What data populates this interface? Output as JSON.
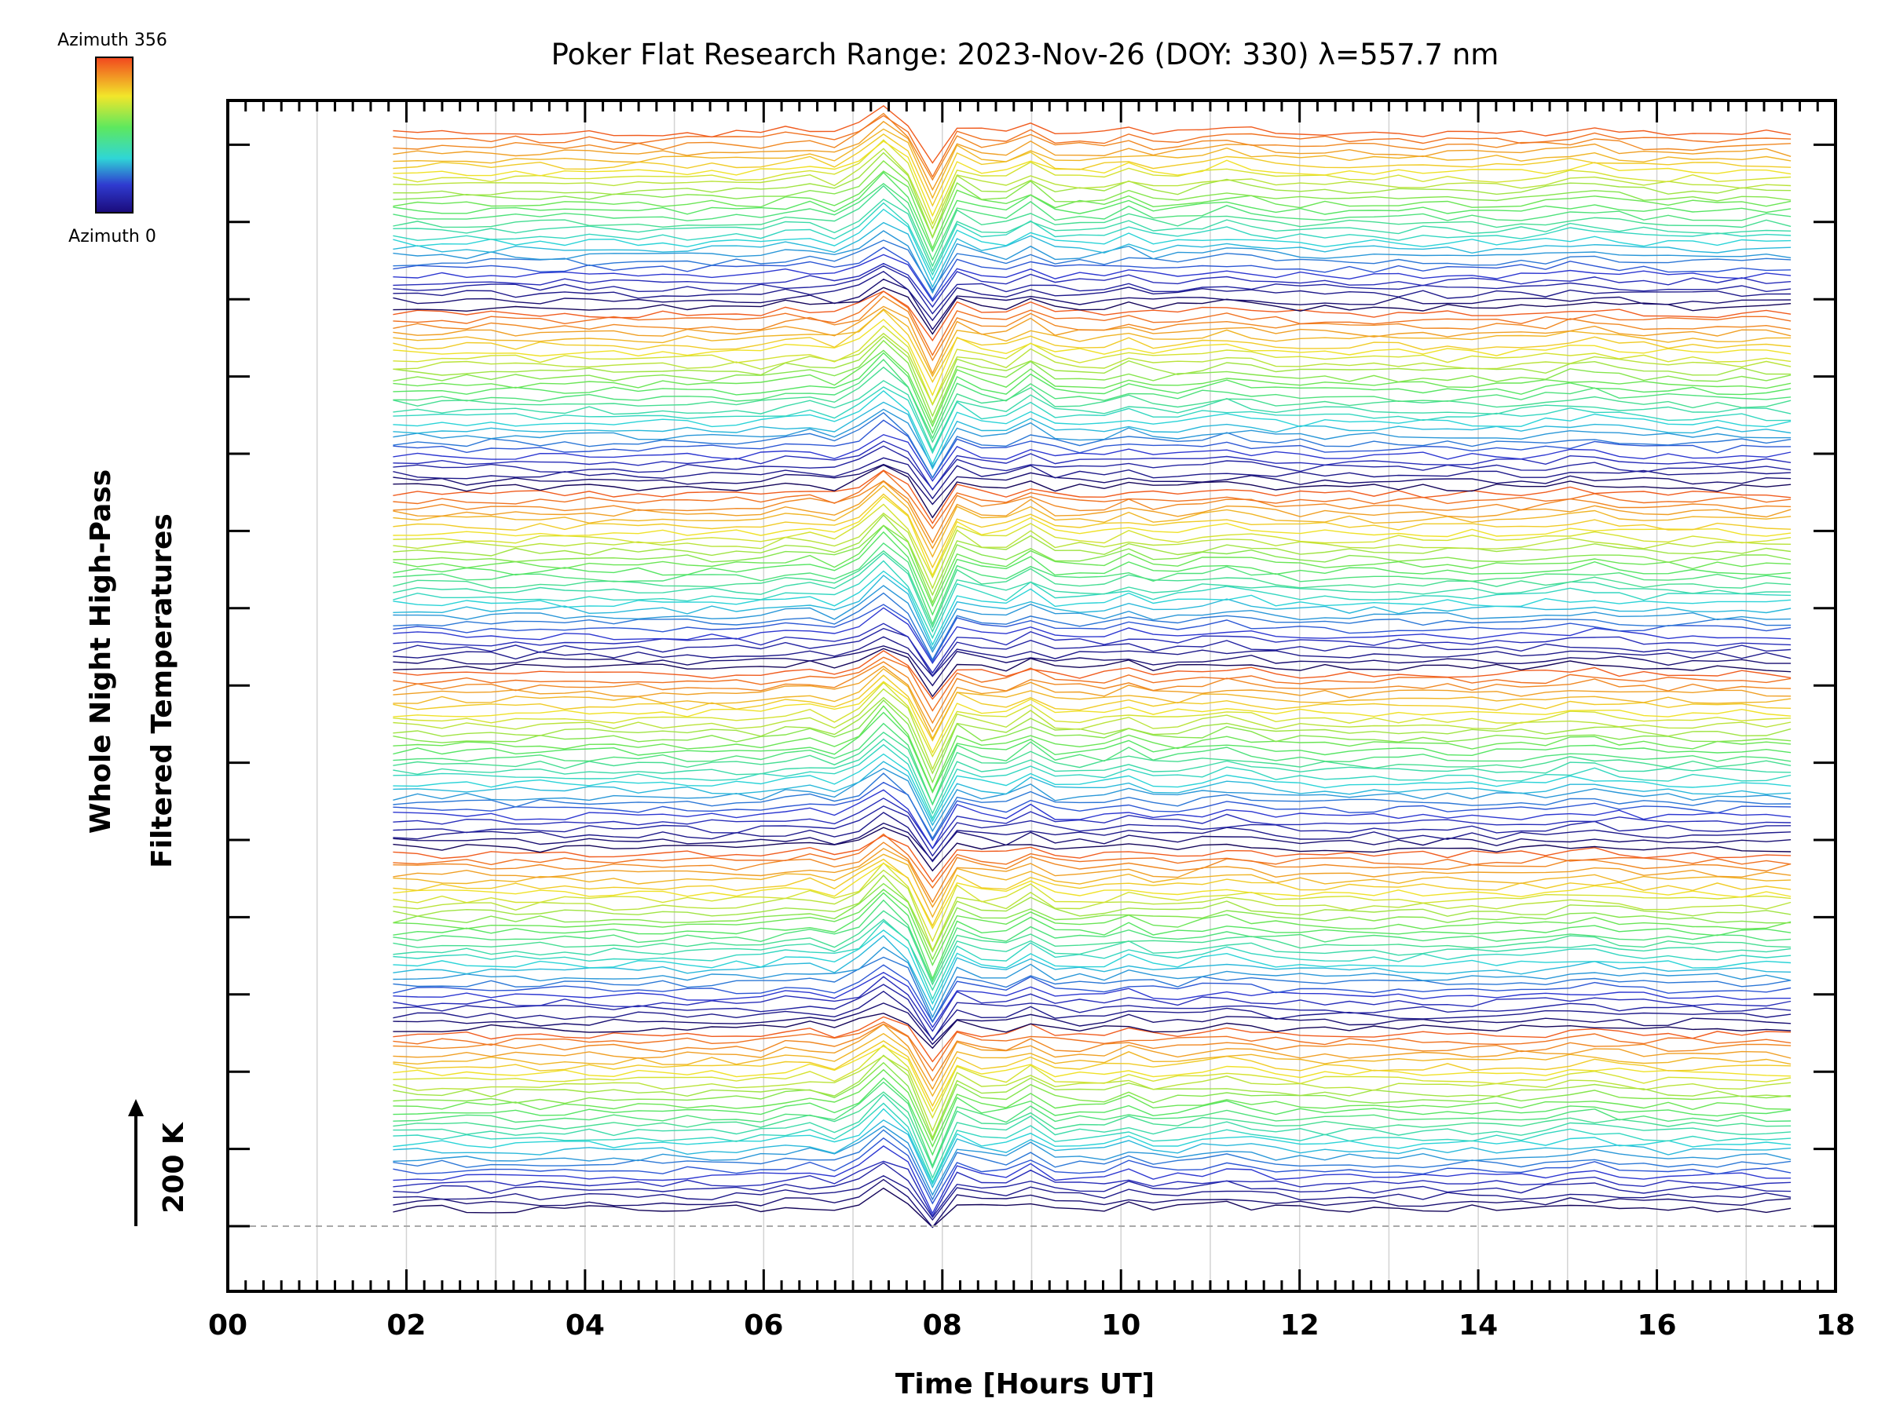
{
  "chart_data": {
    "type": "line",
    "title": "Poker Flat Research Range: 2023-Nov-26 (DOY: 330) λ=557.7 nm",
    "xlabel": "Time [Hours UT]",
    "ylabel_line1": "Whole Night High-Pass",
    "ylabel_line2": "Filtered Temperatures",
    "scale_label": "200 K",
    "xlim": [
      0,
      18
    ],
    "x_tick_labels": [
      "00",
      "02",
      "04",
      "06",
      "08",
      "10",
      "12",
      "14",
      "16",
      "18"
    ],
    "x_tick_values": [
      0,
      2,
      4,
      6,
      8,
      10,
      12,
      14,
      16,
      18
    ],
    "grid": true,
    "colorbar": {
      "label_top": "Azimuth 356",
      "label_bottom": "Azimuth 0",
      "colormap": "rainbow",
      "min": 0,
      "max": 356
    },
    "series_count": 168,
    "data_time_range": [
      1.85,
      17.5
    ],
    "baseline_dashed": true,
    "features": {
      "strong_oscillation_hours": [
        7.0,
        8.3
      ],
      "dip_hour": 7.95,
      "peak_hour": 7.35
    }
  },
  "colors": {
    "frame": "#000000",
    "grid": "#d3d3d3",
    "baseline": "#a9a9a9"
  }
}
